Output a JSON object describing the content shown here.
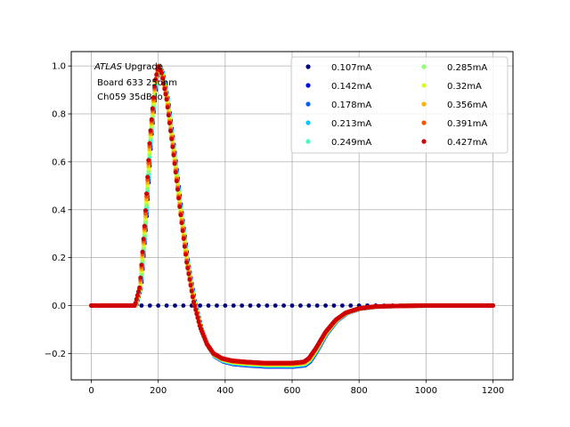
{
  "chart_data": {
    "type": "scatter",
    "title": "",
    "xlabel": "",
    "ylabel": "",
    "xlim": [
      -60,
      1260
    ],
    "ylim": [
      -0.31,
      1.06
    ],
    "xticks": [
      0,
      200,
      400,
      600,
      800,
      1000,
      1200
    ],
    "yticks": [
      -0.2,
      0.0,
      0.2,
      0.4,
      0.6,
      0.8,
      1.0
    ],
    "xtick_labels": [
      "0",
      "200",
      "400",
      "600",
      "800",
      "1000",
      "1200"
    ],
    "ytick_labels": [
      "−0.2",
      "0.0",
      "0.2",
      "0.4",
      "0.6",
      "0.8",
      "1.0"
    ],
    "grid": true,
    "legend_position": "top-right",
    "annotation": {
      "line1_italic": "ATLAS",
      "line1_rest": " Upgrade",
      "line2": " Board 633 25ohm",
      "line3": " Ch059 35dB lo"
    },
    "pulse_shape": {
      "description_points": [
        [
          0,
          0.0
        ],
        [
          130,
          0.0
        ],
        [
          145,
          0.08
        ],
        [
          160,
          0.35
        ],
        [
          175,
          0.7
        ],
        [
          190,
          0.93
        ],
        [
          200,
          1.0
        ],
        [
          210,
          0.97
        ],
        [
          225,
          0.86
        ],
        [
          245,
          0.64
        ],
        [
          265,
          0.4
        ],
        [
          285,
          0.18
        ],
        [
          305,
          0.02
        ],
        [
          325,
          -0.09
        ],
        [
          345,
          -0.16
        ],
        [
          365,
          -0.2
        ],
        [
          390,
          -0.22
        ],
        [
          420,
          -0.23
        ],
        [
          460,
          -0.235
        ],
        [
          520,
          -0.24
        ],
        [
          600,
          -0.24
        ],
        [
          635,
          -0.235
        ],
        [
          650,
          -0.22
        ],
        [
          670,
          -0.18
        ],
        [
          700,
          -0.11
        ],
        [
          730,
          -0.06
        ],
        [
          760,
          -0.03
        ],
        [
          800,
          -0.012
        ],
        [
          850,
          -0.004
        ],
        [
          900,
          -0.002
        ],
        [
          1000,
          0.0
        ],
        [
          1200,
          0.0
        ]
      ]
    },
    "series": [
      {
        "name": "0.107mA",
        "color": "#00007f",
        "shape": "flat"
      },
      {
        "name": "0.142mA",
        "color": "#0000ee",
        "shape": "pulse"
      },
      {
        "name": "0.178mA",
        "color": "#0060ff",
        "shape": "pulse"
      },
      {
        "name": "0.213mA",
        "color": "#00c8ff",
        "shape": "pulse"
      },
      {
        "name": "0.249mA",
        "color": "#40ffb8",
        "shape": "pulse"
      },
      {
        "name": "0.285mA",
        "color": "#8cff6c",
        "shape": "pulse"
      },
      {
        "name": "0.32mA",
        "color": "#d6ff20",
        "shape": "pulse"
      },
      {
        "name": "0.356mA",
        "color": "#ffb000",
        "shape": "pulse"
      },
      {
        "name": "0.391mA",
        "color": "#ff5200",
        "shape": "pulse"
      },
      {
        "name": "0.427mA",
        "color": "#d00000",
        "shape": "pulse"
      }
    ]
  }
}
